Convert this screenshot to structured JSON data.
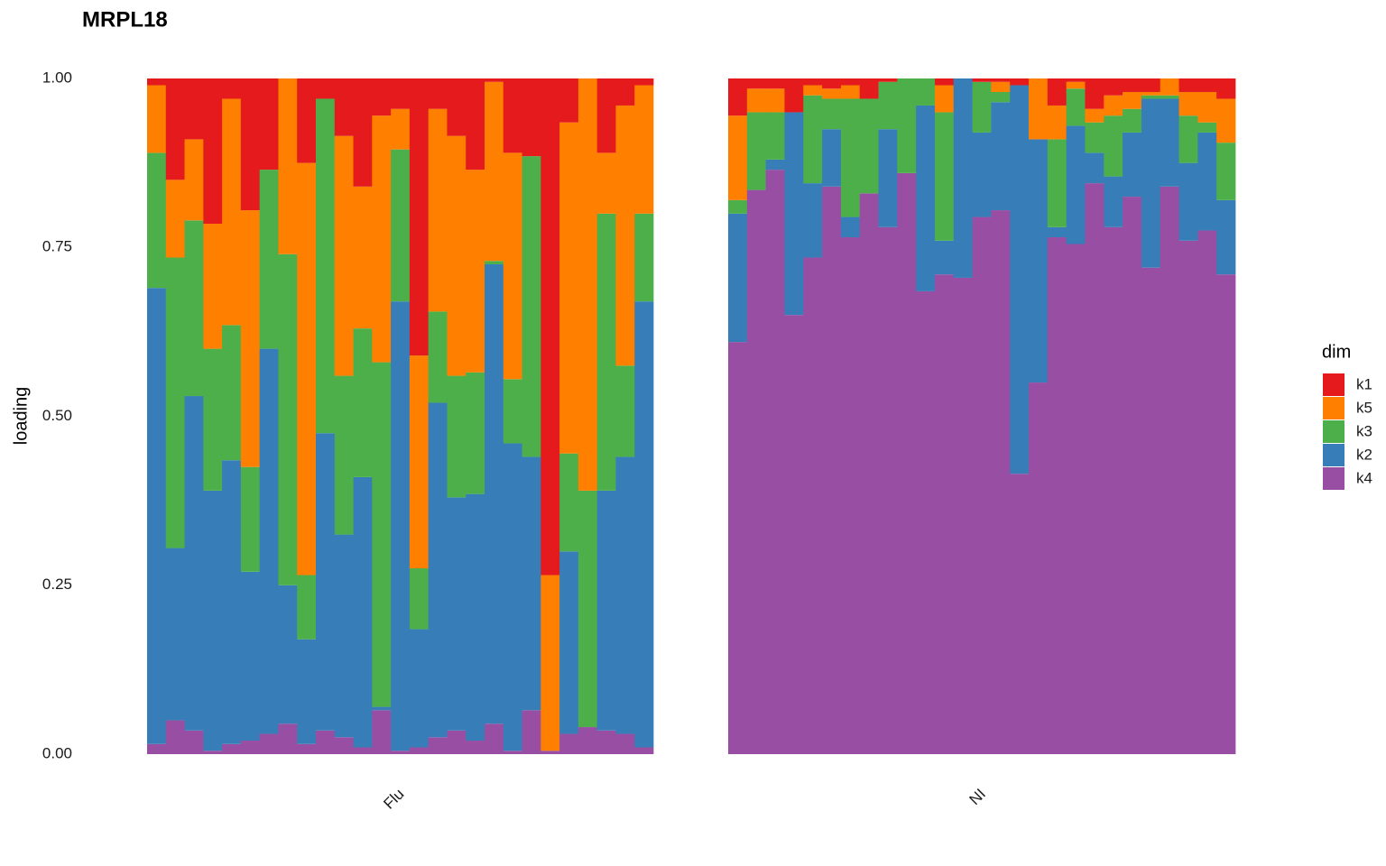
{
  "chart_data": {
    "type": "stacked_bar",
    "title": "MRPL18",
    "y_label": "loading",
    "legend_title": "dim",
    "ylim": [
      0,
      1
    ],
    "yticks": [
      {
        "value": 0,
        "label": "0.00"
      },
      {
        "value": 0.25,
        "label": "0.25"
      },
      {
        "value": 0.5,
        "label": "0.50"
      },
      {
        "value": 0.75,
        "label": "0.75"
      },
      {
        "value": 1,
        "label": "1.00"
      }
    ],
    "series": [
      {
        "name": "k1",
        "color": "#e41a1c"
      },
      {
        "name": "k5",
        "color": "#ff7f00"
      },
      {
        "name": "k3",
        "color": "#4daf4a"
      },
      {
        "name": "k2",
        "color": "#377eb8"
      },
      {
        "name": "k4",
        "color": "#984ea3"
      }
    ],
    "facets": [
      {
        "label": "Flu",
        "series": [
          {
            "values": [
              0.01,
              0.15,
              0.09,
              0.215,
              0.03,
              0.195,
              0.135,
              0,
              0.125,
              0.03,
              0.085,
              0.16,
              0.055,
              0.045,
              0.41,
              0.045,
              0.085,
              0.135,
              0.005,
              0.11,
              0.115,
              0.735,
              0.065,
              0,
              0.11,
              0.04,
              0.01
            ]
          },
          {
            "values": [
              0.1,
              0.115,
              0.12,
              0.185,
              0.335,
              0.38,
              0,
              0.26,
              0.61,
              0,
              0.355,
              0.21,
              0.365,
              0.06,
              0.315,
              0.3,
              0.355,
              0.3,
              0.265,
              0.335,
              0,
              0.26,
              0.49,
              0.61,
              0.09,
              0.385,
              0.19
            ]
          },
          {
            "values": [
              0.2,
              0.43,
              0.26,
              0.21,
              0.2,
              0.155,
              0.265,
              0.49,
              0.095,
              0.495,
              0.235,
              0.22,
              0.51,
              0.225,
              0.09,
              0.135,
              0.18,
              0.18,
              0.005,
              0.095,
              0.445,
              0,
              0.145,
              0.35,
              0.41,
              0.135,
              0.13
            ]
          },
          {
            "values": [
              0.675,
              0.255,
              0.495,
              0.385,
              0.42,
              0.25,
              0.57,
              0.205,
              0.155,
              0.44,
              0.3,
              0.4,
              0.005,
              0.665,
              0.175,
              0.495,
              0.345,
              0.365,
              0.68,
              0.455,
              0.375,
              0,
              0.27,
              0,
              0.355,
              0.41,
              0.66
            ]
          },
          {
            "values": [
              0.015,
              0.05,
              0.035,
              0.005,
              0.015,
              0.02,
              0.03,
              0.045,
              0.015,
              0.035,
              0.025,
              0.01,
              0.065,
              0.005,
              0.01,
              0.025,
              0.035,
              0.02,
              0.045,
              0.005,
              0.065,
              0.005,
              0.03,
              0.04,
              0.035,
              0.03,
              0.01
            ]
          }
        ]
      },
      {
        "label": "NI",
        "series": [
          {
            "values": [
              0.055,
              0.015,
              0.015,
              0.05,
              0.01,
              0.015,
              0.01,
              0.03,
              0.005,
              0,
              0,
              0.01,
              0,
              0.005,
              0.005,
              0.01,
              0,
              0.04,
              0.005,
              0.045,
              0.025,
              0.02,
              0.02,
              0,
              0.02,
              0.02,
              0.03
            ]
          },
          {
            "values": [
              0.125,
              0.035,
              0.035,
              0,
              0.015,
              0.015,
              0.02,
              0,
              0,
              0,
              0,
              0.04,
              0,
              0,
              0.015,
              0,
              0.09,
              0.05,
              0.01,
              0.02,
              0.03,
              0.025,
              0.005,
              0.025,
              0.035,
              0.045,
              0.065
            ]
          },
          {
            "values": [
              0.02,
              0.115,
              0.07,
              0,
              0.13,
              0.045,
              0.175,
              0.14,
              0.07,
              0.14,
              0.04,
              0.19,
              0,
              0.075,
              0.015,
              0,
              0,
              0.13,
              0.055,
              0.045,
              0.09,
              0.035,
              0.005,
              0.005,
              0.07,
              0.015,
              0.085
            ]
          },
          {
            "values": [
              0.19,
              0,
              0.015,
              0.3,
              0.11,
              0.085,
              0.03,
              0,
              0.145,
              0,
              0.275,
              0.05,
              0.295,
              0.125,
              0.16,
              0.575,
              0.36,
              0.015,
              0.175,
              0.045,
              0.075,
              0.095,
              0.25,
              0.13,
              0.115,
              0.145,
              0.11
            ]
          },
          {
            "values": [
              0.61,
              0.835,
              0.865,
              0.65,
              0.735,
              0.84,
              0.765,
              0.83,
              0.78,
              0.86,
              0.685,
              0.71,
              0.705,
              0.795,
              0.805,
              0.415,
              0.55,
              0.765,
              0.755,
              0.845,
              0.78,
              0.825,
              0.72,
              0.84,
              0.76,
              0.775,
              0.71
            ]
          }
        ]
      }
    ]
  }
}
